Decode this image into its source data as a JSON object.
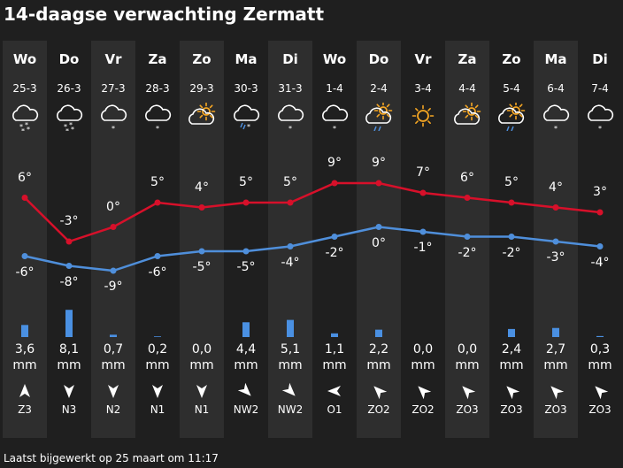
{
  "title": "14-daagse verwachting Zermatt",
  "updated": "Laatst bijgewerkt op 25 maart om 11:17",
  "colors": {
    "high": "#d7102a",
    "low": "#4f8fdb",
    "precip": "#4a90e2",
    "sun": "#f5a623",
    "stripe": "#2e2e2e"
  },
  "precip_unit": "mm",
  "days": [
    {
      "day": "Wo",
      "date": "25-3",
      "icon": "snow",
      "high": "6°",
      "low": "-6°",
      "precip": "3,6",
      "wind_dir": "Z",
      "wind": "Z3"
    },
    {
      "day": "Do",
      "date": "26-3",
      "icon": "snow",
      "high": "-3°",
      "low": "-8°",
      "precip": "8,1",
      "wind_dir": "N",
      "wind": "N3"
    },
    {
      "day": "Vr",
      "date": "27-3",
      "icon": "snow-light",
      "high": "0°",
      "low": "-9°",
      "precip": "0,7",
      "wind_dir": "N",
      "wind": "N2"
    },
    {
      "day": "Za",
      "date": "28-3",
      "icon": "snow-light",
      "high": "5°",
      "low": "-6°",
      "precip": "0,2",
      "wind_dir": "N",
      "wind": "N1"
    },
    {
      "day": "Zo",
      "date": "29-3",
      "icon": "partly-cloudy",
      "high": "4°",
      "low": "-5°",
      "precip": "0,0",
      "wind_dir": "N",
      "wind": "N1"
    },
    {
      "day": "Ma",
      "date": "30-3",
      "icon": "sleet",
      "high": "5°",
      "low": "-5°",
      "precip": "4,4",
      "wind_dir": "NW",
      "wind": "NW2"
    },
    {
      "day": "Di",
      "date": "31-3",
      "icon": "snow-light",
      "high": "5°",
      "low": "-4°",
      "precip": "5,1",
      "wind_dir": "NW",
      "wind": "NW2"
    },
    {
      "day": "Wo",
      "date": "1-4",
      "icon": "snow-light",
      "high": "9°",
      "low": "-2°",
      "precip": "1,1",
      "wind_dir": "O",
      "wind": "O1"
    },
    {
      "day": "Do",
      "date": "2-4",
      "icon": "sun-shower",
      "high": "9°",
      "low": "0°",
      "precip": "2,2",
      "wind_dir": "ZO",
      "wind": "ZO2"
    },
    {
      "day": "Vr",
      "date": "3-4",
      "icon": "sun",
      "high": "7°",
      "low": "-1°",
      "precip": "0,0",
      "wind_dir": "ZO",
      "wind": "ZO2"
    },
    {
      "day": "Za",
      "date": "4-4",
      "icon": "partly-cloudy",
      "high": "6°",
      "low": "-2°",
      "precip": "0,0",
      "wind_dir": "ZO",
      "wind": "ZO3"
    },
    {
      "day": "Zo",
      "date": "5-4",
      "icon": "sun-shower",
      "high": "5°",
      "low": "-2°",
      "precip": "2,4",
      "wind_dir": "ZO",
      "wind": "ZO3"
    },
    {
      "day": "Ma",
      "date": "6-4",
      "icon": "snow-light",
      "high": "4°",
      "low": "-3°",
      "precip": "2,7",
      "wind_dir": "ZO",
      "wind": "ZO3"
    },
    {
      "day": "Di",
      "date": "7-4",
      "icon": "snow-light",
      "high": "3°",
      "low": "-4°",
      "precip": "0,3",
      "wind_dir": "ZO",
      "wind": "ZO3"
    }
  ]
}
